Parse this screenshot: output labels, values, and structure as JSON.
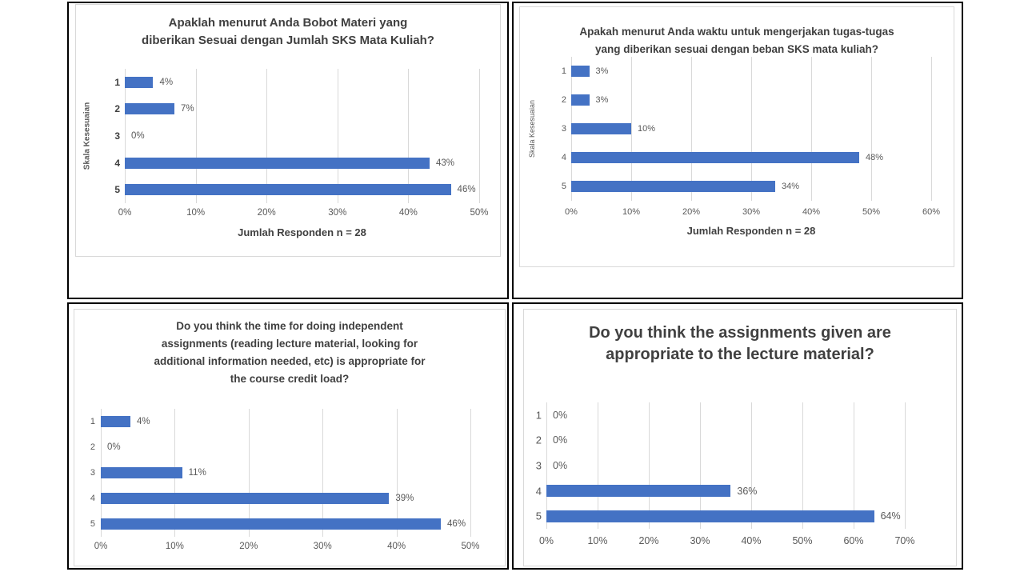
{
  "page": {
    "background": "#ffffff",
    "description_note": "2x2 grid of horizontal bar charts from a course-evaluation survey"
  },
  "palette": {
    "bar": "#4472C4",
    "gridline": "#D9D9D9",
    "chart_border": "#D9D9D9",
    "cell_border": "#000000",
    "title_text": "#404040",
    "label_text": "#595959"
  },
  "chart_data": [
    {
      "type": "bar",
      "orientation": "horizontal",
      "title": "Apaklah menurut Anda Bobot Materi yang diberikan Sesuai dengan Jumlah SKS Mata Kuliah?",
      "title_lines": [
        "Apaklah menurut Anda Bobot Materi yang",
        "diberikan Sesuai dengan Jumlah SKS Mata Kuliah?"
      ],
      "categories": [
        "1",
        "2",
        "3",
        "4",
        "5"
      ],
      "values": [
        4,
        7,
        0,
        43,
        46
      ],
      "data_labels": [
        "4%",
        "7%",
        "0%",
        "43%",
        "46%"
      ],
      "ylabel": "Skala Kesesuaian",
      "xlabel": "Jumlah Responden n = 28",
      "xlim": [
        0,
        50
      ],
      "xticks": [
        "0%",
        "10%",
        "20%",
        "30%",
        "40%",
        "50%"
      ],
      "grid": true,
      "legend": null
    },
    {
      "type": "bar",
      "orientation": "horizontal",
      "title": "Apakah menurut Anda waktu untuk mengerjakan tugas-tugas yang diberikan sesuai dengan beban SKS mata kuliah?",
      "title_lines": [
        "Apakah menurut Anda waktu untuk mengerjakan tugas-tugas",
        "yang diberikan sesuai dengan beban SKS mata kuliah?"
      ],
      "categories": [
        "1",
        "2",
        "3",
        "4",
        "5"
      ],
      "values": [
        3,
        3,
        10,
        48,
        34
      ],
      "data_labels": [
        "3%",
        "3%",
        "10%",
        "48%",
        "34%"
      ],
      "ylabel": "Skala Kesesuaian",
      "xlabel": "Jumlah Responden n = 28",
      "xlim": [
        0,
        60
      ],
      "xticks": [
        "0%",
        "10%",
        "20%",
        "30%",
        "40%",
        "50%",
        "60%"
      ],
      "grid": true,
      "legend": null
    },
    {
      "type": "bar",
      "orientation": "horizontal",
      "title": "Do you think the time for doing independent assignments (reading lecture material, looking for additional information needed, etc) is appropriate for the course credit load?",
      "title_lines": [
        "Do you think the time for doing independent",
        "assignments (reading lecture material, looking for",
        "additional information needed, etc) is appropriate for",
        "the course credit load?"
      ],
      "categories": [
        "1",
        "2",
        "3",
        "4",
        "5"
      ],
      "values": [
        4,
        0,
        11,
        39,
        46
      ],
      "data_labels": [
        "4%",
        "0%",
        "11%",
        "39%",
        "46%"
      ],
      "ylabel": null,
      "xlabel": null,
      "xlim": [
        0,
        50
      ],
      "xticks": [
        "0%",
        "10%",
        "20%",
        "30%",
        "40%",
        "50%"
      ],
      "grid": true,
      "legend": null
    },
    {
      "type": "bar",
      "orientation": "horizontal",
      "title": "Do you think the assignments given are appropriate to the lecture material?",
      "title_lines": [
        "Do you think the assignments given are",
        "appropriate to the lecture material?"
      ],
      "categories": [
        "1",
        "2",
        "3",
        "4",
        "5"
      ],
      "values": [
        0,
        0,
        0,
        36,
        64
      ],
      "data_labels": [
        "0%",
        "0%",
        "0%",
        "36%",
        "64%"
      ],
      "ylabel": null,
      "xlabel": null,
      "xlim": [
        0,
        70
      ],
      "xticks": [
        "0%",
        "10%",
        "20%",
        "30%",
        "40%",
        "50%",
        "60%",
        "70%"
      ],
      "grid": true,
      "legend": null
    }
  ]
}
